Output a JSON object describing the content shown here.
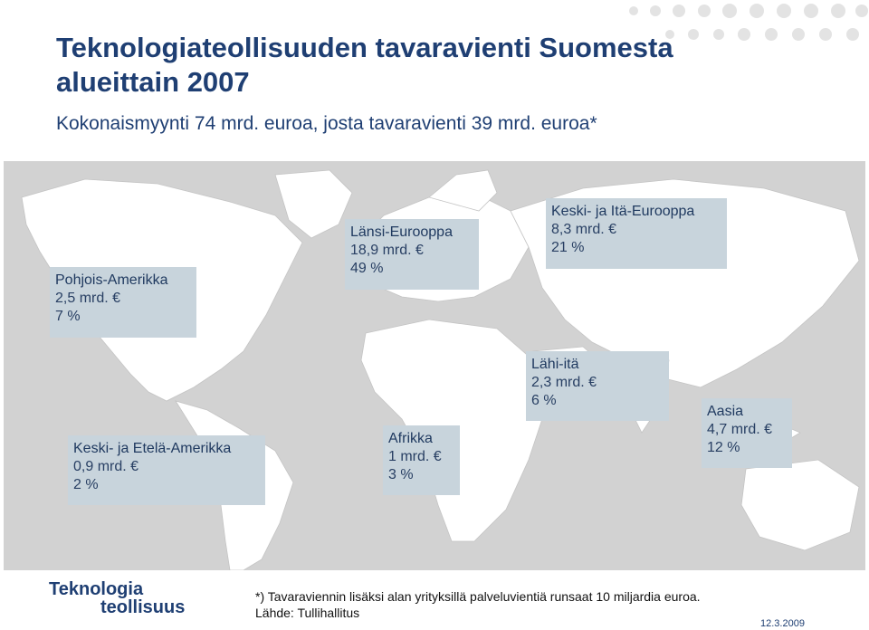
{
  "header": {
    "title": "Teknologiateollisuuden tavaravienti Suomesta alueittain 2007",
    "subtitle": "Kokonaismyynti 74 mrd. euroa, josta tavaravienti 39 mrd. euroa*"
  },
  "colors": {
    "title": "#1f3f73",
    "map_land": "#ffffff",
    "map_sea": "#d2d2d2",
    "label_box": "#c8d4dc"
  },
  "regions": [
    {
      "name": "Pohjois-Amerikka",
      "value": "2,5 mrd. €",
      "share": "7 %"
    },
    {
      "name": "Länsi-Eurooppa",
      "value": "18,9 mrd. €",
      "share": "49 %"
    },
    {
      "name": "Keski- ja Itä-Eurooppa",
      "value": "8,3 mrd. €",
      "share": "21 %"
    },
    {
      "name": "Lähi-itä",
      "value": "2,3 mrd. €",
      "share": "6 %"
    },
    {
      "name": "Aasia",
      "value": "4,7 mrd. €",
      "share": "12 %"
    },
    {
      "name": "Keski- ja Etelä-Amerikka",
      "value": "0,9 mrd. €",
      "share": "2 %"
    },
    {
      "name": "Afrikka",
      "value": "1 mrd. €",
      "share": "3 %"
    }
  ],
  "footer": {
    "logo_line1": "Teknologia",
    "logo_line2": "teollisuus",
    "note": "*) Tavaraviennin lisäksi alan yrityksillä palveluvientiä runsaat 10 miljardia  euroa.",
    "source": "Lähde: Tullihallitus",
    "date": "12.3.2009"
  }
}
